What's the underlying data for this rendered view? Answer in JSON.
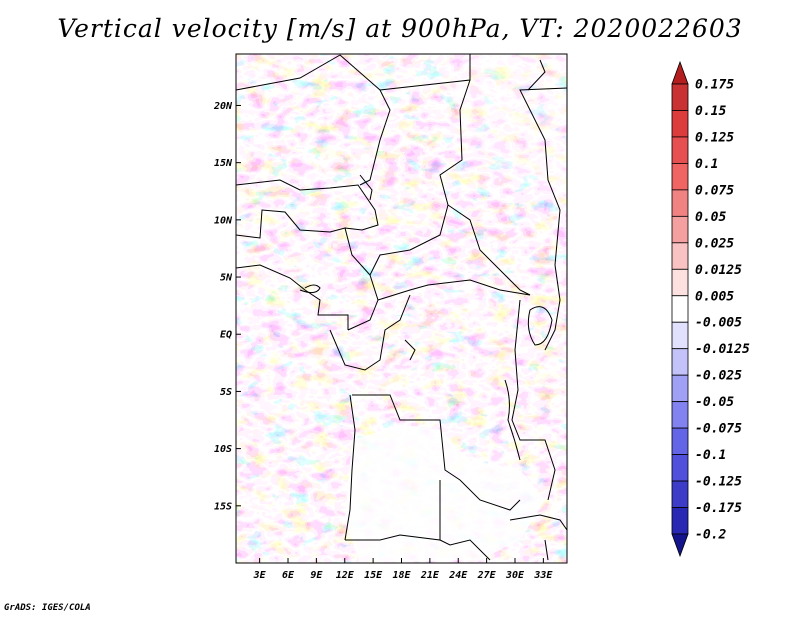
{
  "title": "Vertical velocity [m/s] at 900hPa, VT: 2020022603",
  "credit": "GrADS: IGES/COLA",
  "lat_ticks": [
    "20N",
    "15N",
    "10N",
    "5N",
    "EQ",
    "5S",
    "10S",
    "15S"
  ],
  "lat_values": [
    20,
    15,
    10,
    5,
    0,
    -5,
    -10,
    -15
  ],
  "lon_ticks": [
    "3E",
    "6E",
    "9E",
    "12E",
    "15E",
    "18E",
    "21E",
    "24E",
    "27E",
    "30E",
    "33E"
  ],
  "lon_values": [
    3,
    6,
    9,
    12,
    15,
    18,
    21,
    24,
    27,
    30,
    33
  ],
  "lat_range": [
    -20,
    24.5
  ],
  "lon_range": [
    0.5,
    35.5
  ],
  "colorbar": {
    "labels": [
      "0.175",
      "0.15",
      "0.125",
      "0.1",
      "0.075",
      "0.05",
      "0.025",
      "0.0125",
      "0.005",
      "-0.005",
      "-0.0125",
      "-0.025",
      "-0.05",
      "-0.075",
      "-0.1",
      "-0.125",
      "-0.175",
      "-0.2"
    ],
    "colors": [
      "#b41e1e",
      "#c83232",
      "#dc3c3c",
      "#e65050",
      "#f06464",
      "#f08282",
      "#f5a0a0",
      "#fac3c3",
      "#fde1e1",
      "#ffffff",
      "#e1e1fd",
      "#c3c3fa",
      "#a0a0f5",
      "#8282f0",
      "#6464e6",
      "#5050dc",
      "#3c3cc8",
      "#2828b4",
      "#14148c"
    ]
  }
}
